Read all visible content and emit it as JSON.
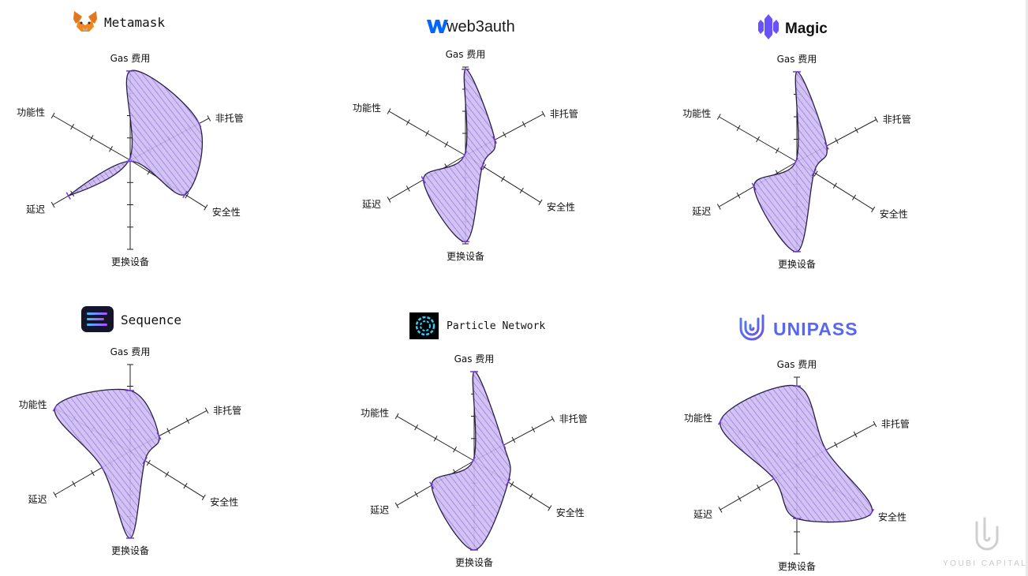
{
  "axes": [
    "Gas 费用",
    "非托管",
    "安全性",
    "更换设备",
    "延迟",
    "功能性"
  ],
  "charts": [
    {
      "brand": "Metamask",
      "logo": "fox-logo",
      "values": [
        4.0,
        3.5,
        2.9,
        0.0,
        3.2,
        0.0
      ]
    },
    {
      "brand": "web3auth",
      "logo": "w-logo",
      "values": [
        3.9,
        1.5,
        0.9,
        3.9,
        2.2,
        0.0
      ]
    },
    {
      "brand": "Magic",
      "logo": "magic-logo",
      "values": [
        4.0,
        1.5,
        0.9,
        4.0,
        2.2,
        0.0
      ]
    },
    {
      "brand": "Sequence",
      "logo": "sequence-logo",
      "values": [
        2.8,
        1.5,
        0.8,
        4.0,
        1.5,
        4.0
      ]
    },
    {
      "brand": "Particle Network",
      "logo": "particle-logo",
      "values": [
        4.0,
        1.5,
        1.8,
        4.0,
        2.2,
        0.0
      ]
    },
    {
      "brand": "UNIPASS",
      "logo": "unipass-logo",
      "values": [
        3.6,
        1.5,
        4.0,
        2.4,
        1.2,
        4.0
      ]
    }
  ],
  "chart_data": [
    {
      "type": "radar",
      "title": "Metamask",
      "categories": [
        "Gas 费用",
        "非托管",
        "安全性",
        "更换设备",
        "延迟",
        "功能性"
      ],
      "series": [
        {
          "values": [
            4.0,
            3.5,
            2.9,
            0.0,
            3.2,
            0.0
          ]
        }
      ],
      "range": [
        0,
        4
      ]
    },
    {
      "type": "radar",
      "title": "web3auth",
      "categories": [
        "Gas 费用",
        "非托管",
        "安全性",
        "更换设备",
        "延迟",
        "功能性"
      ],
      "series": [
        {
          "values": [
            3.9,
            1.5,
            0.9,
            3.9,
            2.2,
            0.0
          ]
        }
      ],
      "range": [
        0,
        4
      ]
    },
    {
      "type": "radar",
      "title": "Magic",
      "categories": [
        "Gas 费用",
        "非托管",
        "安全性",
        "更换设备",
        "延迟",
        "功能性"
      ],
      "series": [
        {
          "values": [
            4.0,
            1.5,
            0.9,
            4.0,
            2.2,
            0.0
          ]
        }
      ],
      "range": [
        0,
        4
      ]
    },
    {
      "type": "radar",
      "title": "Sequence",
      "categories": [
        "Gas 费用",
        "非托管",
        "安全性",
        "更换设备",
        "延迟",
        "功能性"
      ],
      "series": [
        {
          "values": [
            2.8,
            1.5,
            0.8,
            4.0,
            1.5,
            4.0
          ]
        }
      ],
      "range": [
        0,
        4
      ]
    },
    {
      "type": "radar",
      "title": "Particle Network",
      "categories": [
        "Gas 费用",
        "非托管",
        "安全性",
        "更换设备",
        "延迟",
        "功能性"
      ],
      "series": [
        {
          "values": [
            4.0,
            1.5,
            1.8,
            4.0,
            2.2,
            0.0
          ]
        }
      ],
      "range": [
        0,
        4
      ]
    },
    {
      "type": "radar",
      "title": "UNIPASS",
      "categories": [
        "Gas 费用",
        "非托管",
        "安全性",
        "更换设备",
        "延迟",
        "功能性"
      ],
      "series": [
        {
          "values": [
            3.6,
            1.5,
            4.0,
            2.4,
            1.2,
            4.0
          ]
        }
      ],
      "range": [
        0,
        4
      ]
    }
  ],
  "colors": {
    "fill": "#c9b6f2",
    "hatch": "#8a63d6",
    "stroke": "#2a1f45",
    "accent": "#6f3bd8",
    "axis": "#222222"
  },
  "watermark": {
    "text": "YOUBI CAPITAL",
    "logo": "youbi-logo"
  }
}
